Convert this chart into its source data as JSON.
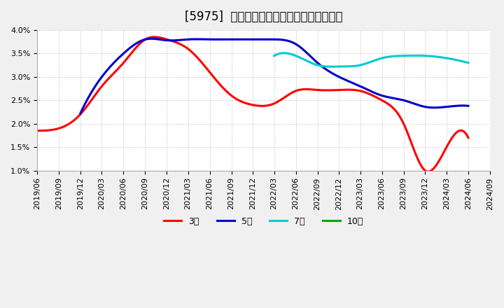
{
  "title": "[5975]  経常利益マージンの標準偏差の推移",
  "title_fontsize": 12,
  "background_color": "#f0f0f0",
  "plot_bg_color": "#ffffff",
  "grid_color": "#aaaaaa",
  "ylim": [
    0.01,
    0.04
  ],
  "yticks": [
    0.01,
    0.015,
    0.02,
    0.025,
    0.03,
    0.035,
    0.04
  ],
  "legend": [
    {
      "label": "3年",
      "color": "#ff0000"
    },
    {
      "label": "5年",
      "color": "#0000cc"
    },
    {
      "label": "7年",
      "color": "#00cccc"
    },
    {
      "label": "10年",
      "color": "#00aa00"
    }
  ],
  "series_3y": {
    "color": "#ff0000",
    "dates": [
      "2019-06",
      "2019-09",
      "2019-12",
      "2020-03",
      "2020-06",
      "2020-09",
      "2020-12",
      "2021-03",
      "2021-06",
      "2021-09",
      "2021-12",
      "2022-03",
      "2022-06",
      "2022-09",
      "2022-12",
      "2023-03",
      "2023-06",
      "2023-09",
      "2023-12",
      "2024-03",
      "2024-06"
    ],
    "values": [
      0.0185,
      0.019,
      0.022,
      0.028,
      0.033,
      0.038,
      0.038,
      0.036,
      0.031,
      0.026,
      0.024,
      0.0243,
      0.027,
      0.0272,
      0.0272,
      0.027,
      0.025,
      0.02,
      0.01,
      0.015,
      0.017
    ]
  },
  "series_5y": {
    "color": "#0000cc",
    "dates": [
      "2019-12",
      "2020-03",
      "2020-06",
      "2020-09",
      "2020-12",
      "2021-03",
      "2021-06",
      "2021-09",
      "2021-12",
      "2022-03",
      "2022-06",
      "2022-09",
      "2022-12",
      "2023-03",
      "2023-06",
      "2023-09",
      "2023-12",
      "2024-03",
      "2024-06"
    ],
    "values": [
      0.0222,
      0.03,
      0.035,
      0.038,
      0.0378,
      0.038,
      0.038,
      0.038,
      0.038,
      0.038,
      0.037,
      0.033,
      0.03,
      0.028,
      0.026,
      0.025,
      0.0236,
      0.0236,
      0.0238
    ]
  },
  "series_7y": {
    "color": "#00cccc",
    "dates": [
      "2022-03",
      "2022-06",
      "2022-09",
      "2022-12",
      "2023-03",
      "2023-06",
      "2023-09",
      "2023-12",
      "2024-03",
      "2024-06"
    ],
    "values": [
      0.0345,
      0.0345,
      0.0325,
      0.0322,
      0.0325,
      0.034,
      0.0345,
      0.0345,
      0.034,
      0.033
    ]
  },
  "series_10y": {
    "color": "#00aa00",
    "dates": [],
    "values": []
  }
}
